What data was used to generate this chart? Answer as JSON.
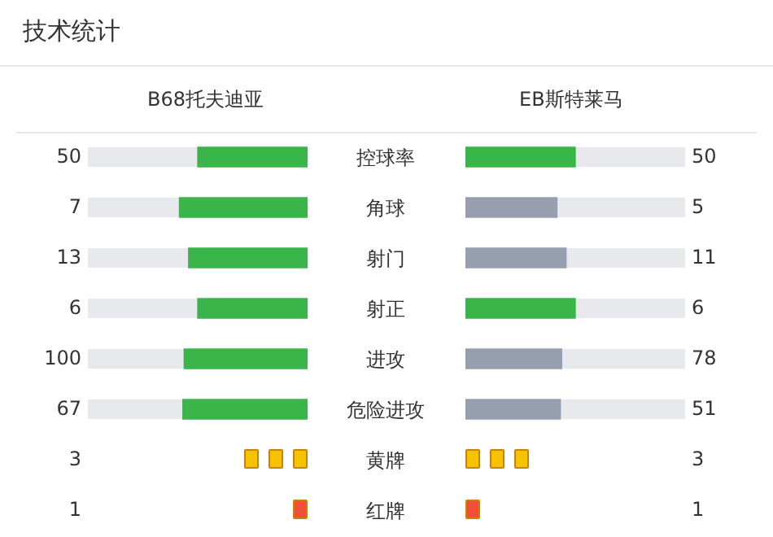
{
  "chart_data": [
    {
      "type": "other",
      "title": "技术统计",
      "categories": [
        "控球率",
        "角球",
        "射门",
        "射正",
        "进攻",
        "危险进攻"
      ],
      "data_labels": true,
      "series": [
        {
          "name": "B68托夫迪亚",
          "colors": [
            "#3ab54a",
            "#3ab54a",
            "#3ab54a",
            "#3ab54a",
            "#3ab54a",
            "#3ab54a"
          ],
          "values": [
            50,
            7,
            13,
            6,
            100,
            67
          ]
        },
        {
          "name": "EB斯特莱马",
          "colors": [
            "#3ab54a",
            "#969eb0",
            "#969eb0",
            "#3ab54a",
            "#969eb0",
            "#969eb0"
          ],
          "values": [
            50,
            5,
            11,
            6,
            78,
            51
          ]
        }
      ]
    },
    {
      "type": "other",
      "categories": [
        "黄牌",
        "红牌"
      ],
      "data_labels": true,
      "series": [
        {
          "colors": [
            "#f5c400",
            "#f04e37"
          ],
          "values": [
            3,
            1
          ]
        },
        {
          "colors": [
            "#f5c400",
            "#f04e37"
          ],
          "values": [
            3,
            1
          ]
        }
      ]
    }
  ]
}
